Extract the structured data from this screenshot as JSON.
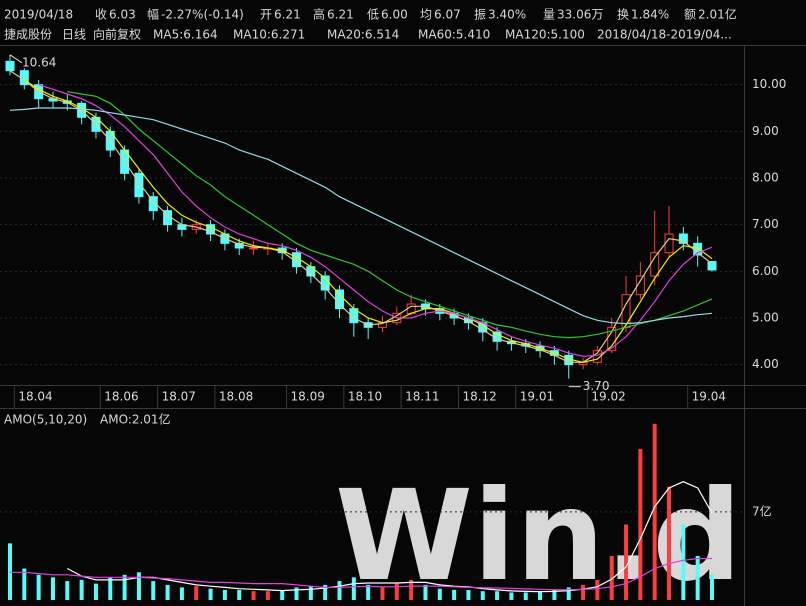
{
  "header": {
    "date": "2019/04/18",
    "fields": [
      {
        "label": "收",
        "value": "6.03",
        "color": "#22dd22"
      },
      {
        "label": "幅",
        "value": "-2.27%(-0.14)",
        "color": "#22dd22"
      },
      {
        "label": "开",
        "value": "6.21",
        "color": "#ff3c3c"
      },
      {
        "label": "高",
        "value": "6.21",
        "color": "#ff3c3c"
      },
      {
        "label": "低",
        "value": "6.00",
        "color": "#22dd22"
      },
      {
        "label": "均",
        "value": "6.07",
        "color": "#22dd22"
      },
      {
        "label": "振",
        "value": "3.40%",
        "color": "#e0e0e0"
      },
      {
        "label": "量",
        "value": "33.06万",
        "color": "#e0e0e0"
      },
      {
        "label": "换",
        "value": "1.84%",
        "color": "#e0e0e0"
      },
      {
        "label": "额",
        "value": "2.01亿",
        "color": "#e0e0e0"
      }
    ]
  },
  "watermark": "Win.d",
  "chart_data": [
    {
      "type": "candlestick",
      "title": "捷成股份",
      "period": "日线",
      "adjust": "向前复权",
      "range": "2018/04/18-2019/04...",
      "up_color": "#ff3c3c",
      "down_color": "#54fcfc",
      "grid": true,
      "categories": [
        null,
        "18.04",
        null,
        null,
        null,
        null,
        null,
        "18.06",
        null,
        null,
        null,
        "18.07",
        null,
        null,
        null,
        "18.08",
        null,
        null,
        null,
        null,
        "18.09",
        null,
        null,
        null,
        "18.10",
        null,
        null,
        null,
        "18.11",
        null,
        null,
        null,
        "18.12",
        null,
        null,
        null,
        "19.01",
        null,
        null,
        null,
        null,
        "19.02",
        null,
        null,
        null,
        null,
        null,
        null,
        "19.04",
        null
      ],
      "open": [
        10.5,
        10.3,
        10.0,
        9.7,
        9.65,
        9.6,
        9.3,
        9.0,
        8.6,
        8.1,
        7.6,
        7.3,
        7.0,
        6.9,
        7.0,
        6.8,
        6.6,
        6.5,
        6.5,
        6.5,
        6.4,
        6.1,
        5.9,
        5.6,
        5.2,
        4.9,
        4.8,
        4.9,
        5.1,
        5.3,
        5.2,
        5.1,
        5.0,
        4.9,
        4.7,
        4.5,
        4.45,
        4.4,
        4.3,
        4.2,
        4.0,
        4.05,
        4.3,
        4.8,
        5.5,
        5.9,
        6.4,
        6.8,
        6.6,
        6.21
      ],
      "high": [
        10.64,
        10.35,
        10.1,
        9.85,
        9.8,
        9.65,
        9.4,
        9.1,
        8.7,
        8.2,
        7.7,
        7.4,
        7.15,
        7.1,
        7.1,
        6.9,
        6.7,
        6.65,
        6.6,
        6.6,
        6.5,
        6.2,
        6.0,
        5.7,
        5.3,
        5.0,
        5.05,
        5.25,
        5.5,
        5.4,
        5.3,
        5.2,
        5.1,
        5.0,
        4.8,
        4.6,
        4.55,
        4.5,
        4.4,
        4.3,
        4.15,
        4.4,
        5.0,
        5.9,
        6.2,
        7.3,
        7.4,
        6.95,
        6.75,
        6.21
      ],
      "low": [
        10.2,
        9.9,
        9.5,
        9.5,
        9.45,
        9.15,
        8.85,
        8.45,
        7.95,
        7.45,
        7.1,
        6.85,
        6.75,
        6.8,
        6.65,
        6.45,
        6.35,
        6.35,
        6.35,
        6.25,
        5.95,
        5.75,
        5.4,
        5.0,
        4.6,
        4.55,
        4.7,
        4.85,
        5.05,
        5.05,
        4.95,
        4.85,
        4.75,
        4.5,
        4.3,
        4.3,
        4.25,
        4.15,
        4.0,
        3.7,
        3.9,
        4.0,
        4.25,
        4.7,
        5.4,
        5.7,
        6.3,
        6.45,
        6.1,
        6.0
      ],
      "close": [
        10.3,
        10.0,
        9.7,
        9.65,
        9.6,
        9.3,
        9.0,
        8.6,
        8.1,
        7.6,
        7.3,
        7.0,
        6.9,
        7.0,
        6.8,
        6.6,
        6.5,
        6.5,
        6.5,
        6.4,
        6.1,
        5.9,
        5.6,
        5.2,
        4.9,
        4.8,
        4.9,
        5.1,
        5.3,
        5.2,
        5.1,
        5.0,
        4.9,
        4.7,
        4.5,
        4.45,
        4.4,
        4.3,
        4.2,
        4.0,
        4.05,
        4.3,
        4.8,
        5.5,
        5.9,
        6.4,
        6.8,
        6.6,
        6.35,
        6.03
      ],
      "max_label": "10.64",
      "min_label": "3.70",
      "series": [
        {
          "name": "MA5:6.164",
          "color": "#e8c888",
          "values": [
            10.3,
            10.1,
            9.85,
            9.7,
            9.62,
            9.45,
            9.15,
            8.8,
            8.35,
            7.9,
            7.5,
            7.2,
            7.0,
            6.95,
            6.85,
            6.7,
            6.58,
            6.52,
            6.5,
            6.42,
            6.2,
            5.95,
            5.65,
            5.3,
            5.0,
            4.85,
            4.88,
            5.05,
            5.25,
            5.25,
            5.15,
            5.05,
            4.93,
            4.75,
            4.55,
            4.47,
            4.4,
            4.32,
            4.2,
            4.05,
            4.05,
            4.25,
            4.7,
            5.3,
            5.8,
            6.3,
            6.7,
            6.65,
            6.4,
            6.164
          ]
        },
        {
          "name": "MA10:6.271",
          "color": "#f0f000",
          "values": [
            null,
            10.1,
            9.9,
            9.75,
            9.65,
            9.5,
            9.3,
            9.0,
            8.6,
            8.2,
            7.8,
            7.45,
            7.2,
            7.05,
            6.95,
            6.8,
            6.65,
            6.55,
            6.5,
            6.45,
            6.3,
            6.1,
            5.85,
            5.5,
            5.2,
            5.0,
            4.9,
            4.95,
            5.1,
            5.2,
            5.2,
            5.1,
            5.0,
            4.85,
            4.65,
            4.52,
            4.45,
            4.35,
            4.25,
            4.12,
            4.05,
            4.12,
            4.4,
            4.85,
            5.35,
            5.85,
            6.3,
            6.55,
            6.5,
            6.271
          ]
        },
        {
          "name": "MA20:6.514",
          "color": "#e040e0",
          "values": [
            null,
            null,
            10.0,
            9.9,
            9.8,
            9.7,
            9.55,
            9.35,
            9.1,
            8.8,
            8.5,
            8.1,
            7.7,
            7.4,
            7.15,
            6.95,
            6.8,
            6.7,
            6.6,
            6.55,
            6.45,
            6.3,
            6.1,
            5.85,
            5.6,
            5.35,
            5.15,
            5.0,
            5.0,
            5.1,
            5.15,
            5.1,
            5.0,
            4.9,
            4.75,
            4.6,
            4.5,
            4.42,
            4.35,
            4.25,
            4.18,
            4.2,
            4.35,
            4.6,
            4.95,
            5.35,
            5.8,
            6.15,
            6.4,
            6.514
          ]
        },
        {
          "name": "MA60:5.410",
          "color": "#2ec82e",
          "values": [
            null,
            null,
            null,
            null,
            9.85,
            9.8,
            9.75,
            9.6,
            9.35,
            9.05,
            8.8,
            8.55,
            8.3,
            8.05,
            7.85,
            7.6,
            7.4,
            7.2,
            7.0,
            6.8,
            6.6,
            6.45,
            6.35,
            6.25,
            6.15,
            6.0,
            5.8,
            5.6,
            5.45,
            5.35,
            5.25,
            5.15,
            5.05,
            4.95,
            4.85,
            4.8,
            4.72,
            4.65,
            4.6,
            4.58,
            4.6,
            4.65,
            4.72,
            4.8,
            4.88,
            4.95,
            5.05,
            5.15,
            5.28,
            5.41
          ]
        },
        {
          "name": "MA120:5.100",
          "color": "#8fdcea",
          "values": [
            9.45,
            9.47,
            9.5,
            9.5,
            9.5,
            9.48,
            9.45,
            9.4,
            9.35,
            9.3,
            9.25,
            9.15,
            9.05,
            8.95,
            8.85,
            8.75,
            8.6,
            8.5,
            8.4,
            8.25,
            8.1,
            7.95,
            7.8,
            7.6,
            7.45,
            7.3,
            7.15,
            7.0,
            6.85,
            6.7,
            6.55,
            6.4,
            6.25,
            6.1,
            5.95,
            5.8,
            5.65,
            5.5,
            5.35,
            5.2,
            5.05,
            4.95,
            4.9,
            4.88,
            4.9,
            4.95,
            5.0,
            5.03,
            5.07,
            5.1
          ]
        }
      ],
      "ylim": [
        3.65,
        10.85
      ],
      "yticks": [
        {
          "value": 4,
          "label": "4.00"
        },
        {
          "value": 5,
          "label": "5.00"
        },
        {
          "value": 6,
          "label": "6.00"
        },
        {
          "value": 7,
          "label": "7.00"
        },
        {
          "value": 8,
          "label": "8.00"
        },
        {
          "value": 9,
          "label": "9.00"
        },
        {
          "value": 10,
          "label": "10.00"
        }
      ]
    },
    {
      "type": "bar",
      "title": "AMO(5,10,20)",
      "subtitle": "AMO:2.01亿",
      "values": [
        4.5,
        2.5,
        2.0,
        1.8,
        1.5,
        1.6,
        1.3,
        1.8,
        2.0,
        2.2,
        1.5,
        1.2,
        1.0,
        1.1,
        0.9,
        0.8,
        0.8,
        0.7,
        0.7,
        0.8,
        1.0,
        1.1,
        1.2,
        1.5,
        1.8,
        1.2,
        1.0,
        1.3,
        1.6,
        1.2,
        0.9,
        0.8,
        0.8,
        0.7,
        0.7,
        0.6,
        0.6,
        0.7,
        0.8,
        1.0,
        1.2,
        1.6,
        3.5,
        6.0,
        12.0,
        14.0,
        9.0,
        6.0,
        3.5,
        2.01
      ],
      "lines": [
        {
          "color": "#ffffff",
          "values": [
            null,
            null,
            null,
            null,
            2.5,
            1.9,
            1.6,
            1.6,
            1.6,
            1.8,
            1.8,
            1.6,
            1.4,
            1.2,
            1.1,
            1.0,
            0.9,
            0.85,
            0.8,
            0.75,
            0.8,
            0.85,
            0.95,
            1.1,
            1.3,
            1.35,
            1.35,
            1.35,
            1.4,
            1.4,
            1.2,
            1.1,
            1.05,
            0.9,
            0.8,
            0.72,
            0.68,
            0.66,
            0.68,
            0.74,
            0.86,
            1.06,
            1.66,
            2.62,
            4.86,
            7.42,
            8.9,
            9.4,
            8.9,
            6.9
          ]
        },
        {
          "color": "#e040e0",
          "values": [
            2.2,
            2.2,
            2.1,
            2.0,
            2.0,
            1.9,
            1.8,
            1.8,
            1.8,
            1.8,
            1.75,
            1.7,
            1.6,
            1.5,
            1.4,
            1.4,
            1.35,
            1.3,
            1.3,
            1.3,
            1.2,
            1.1,
            1.0,
            1.0,
            1.05,
            1.08,
            1.05,
            1.05,
            1.1,
            1.1,
            1.1,
            1.05,
            1.0,
            0.98,
            0.95,
            0.92,
            0.88,
            0.85,
            0.82,
            0.82,
            0.85,
            0.9,
            1.05,
            1.3,
            1.85,
            2.5,
            2.9,
            3.15,
            3.3,
            3.3
          ]
        }
      ],
      "ylim": [
        0,
        14.3
      ],
      "yticks": [
        {
          "value": 7,
          "label": "7亿"
        }
      ]
    }
  ]
}
